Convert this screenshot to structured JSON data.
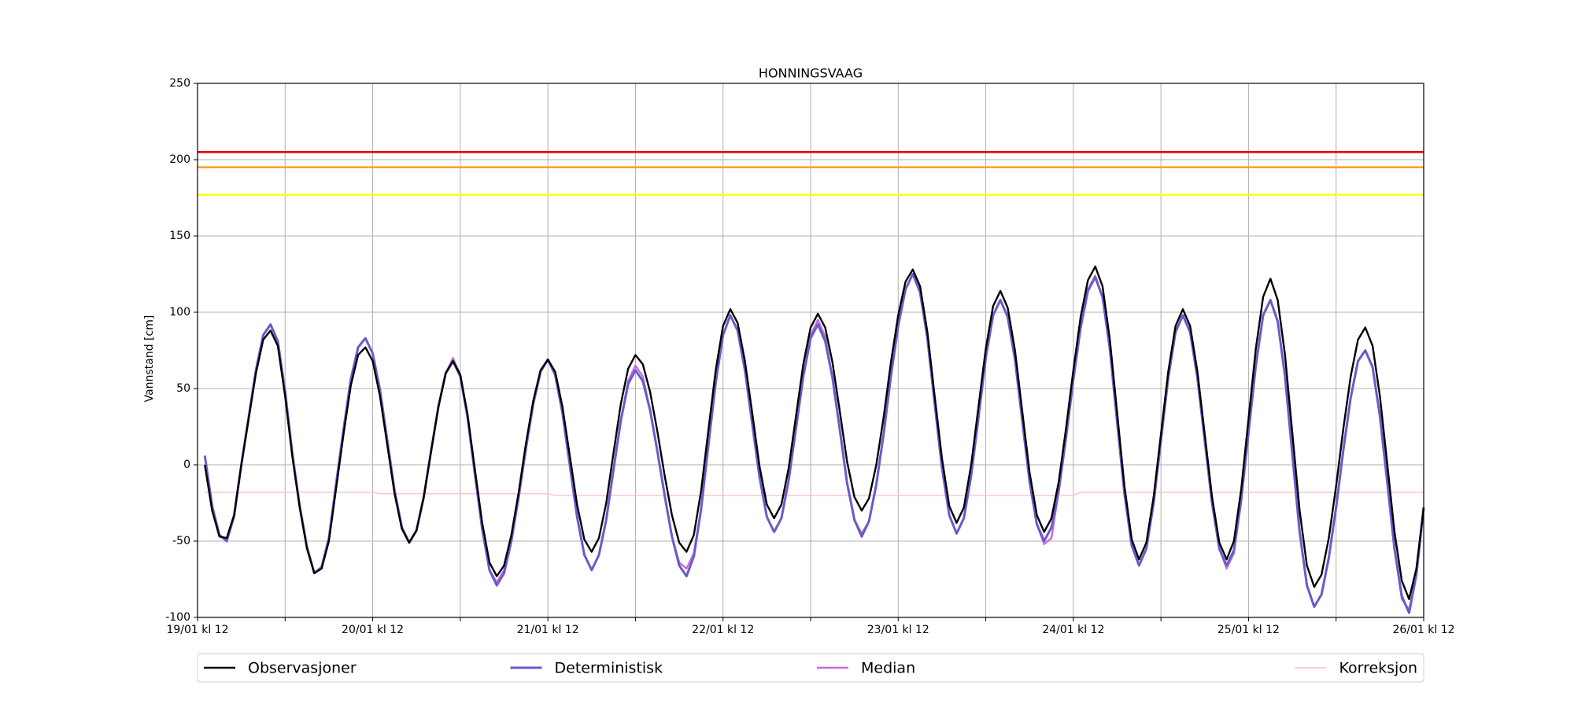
{
  "chart_data": {
    "type": "line",
    "title": "HONNINGSVAAG",
    "ylabel": "Vannstand [cm]",
    "xlim": [
      0,
      168
    ],
    "ylim": [
      -100,
      250
    ],
    "yticks": [
      -100,
      -50,
      0,
      50,
      100,
      150,
      200,
      250
    ],
    "xticks": [
      {
        "value": 0,
        "label": "19/01 kl 12"
      },
      {
        "value": 24,
        "label": "20/01 kl 12"
      },
      {
        "value": 48,
        "label": "21/01 kl 12"
      },
      {
        "value": 72,
        "label": "22/01 kl 12"
      },
      {
        "value": 96,
        "label": "23/01 kl 12"
      },
      {
        "value": 120,
        "label": "24/01 kl 12"
      },
      {
        "value": 144,
        "label": "25/01 kl 12"
      },
      {
        "value": 168,
        "label": "26/01 kl 12"
      }
    ],
    "xminor_ticks": [
      12,
      36,
      60,
      84,
      108,
      132,
      156
    ],
    "grid": true,
    "legend_position": "bottom",
    "hlines": [
      {
        "value": 205,
        "color": "#e8000b"
      },
      {
        "value": 195,
        "color": "#f5a524"
      },
      {
        "value": 177,
        "color": "#ffff1a"
      }
    ],
    "x": [
      1,
      2,
      3,
      4,
      5,
      6,
      7,
      8,
      9,
      10,
      11,
      12,
      13,
      14,
      15,
      16,
      17,
      18,
      19,
      20,
      21,
      22,
      23,
      24,
      25,
      26,
      27,
      28,
      29,
      30,
      31,
      32,
      33,
      34,
      35,
      36,
      37,
      38,
      39,
      40,
      41,
      42,
      43,
      44,
      45,
      46,
      47,
      48,
      49,
      50,
      51,
      52,
      53,
      54,
      55,
      56,
      57,
      58,
      59,
      60,
      61,
      62,
      63,
      64,
      65,
      66,
      67,
      68,
      69,
      70,
      71,
      72,
      73,
      74,
      75,
      76,
      77,
      78,
      79,
      80,
      81,
      82,
      83,
      84,
      85,
      86,
      87,
      88,
      89,
      90,
      91,
      92,
      93,
      94,
      95,
      96,
      97,
      98,
      99,
      100,
      101,
      102,
      103,
      104,
      105,
      106,
      107,
      108,
      109,
      110,
      111,
      112,
      113,
      114,
      115,
      116,
      117,
      118,
      119,
      120,
      121,
      122,
      123,
      124,
      125,
      126,
      127,
      128,
      129,
      130,
      131,
      132,
      133,
      134,
      135,
      136,
      137,
      138,
      139,
      140,
      141,
      142,
      143,
      144,
      145,
      146,
      147,
      148,
      149,
      150,
      151,
      152,
      153,
      154,
      155,
      156,
      157,
      158,
      159,
      160,
      161,
      162,
      163,
      164,
      165,
      166,
      167,
      168
    ],
    "series": [
      {
        "name": "Observasjoner",
        "color": "#000000",
        "width": 2.4,
        "values": [
          0,
          -30,
          -47,
          -48,
          -33,
          0,
          30,
          60,
          82,
          88,
          78,
          45,
          5,
          -28,
          -55,
          -71,
          -68,
          -50,
          -15,
          20,
          52,
          72,
          77,
          68,
          45,
          13,
          -19,
          -42,
          -51,
          -43,
          -21,
          9,
          38,
          60,
          68,
          59,
          33,
          -3,
          -38,
          -64,
          -73,
          -66,
          -46,
          -18,
          14,
          42,
          62,
          69,
          61,
          38,
          6,
          -26,
          -49,
          -57,
          -48,
          -25,
          8,
          40,
          63,
          72,
          66,
          48,
          22,
          -7,
          -33,
          -51,
          -57,
          -46,
          -17,
          23,
          62,
          91,
          102,
          93,
          68,
          34,
          -1,
          -26,
          -35,
          -26,
          -2,
          32,
          66,
          90,
          99,
          90,
          67,
          35,
          2,
          -21,
          -30,
          -22,
          0,
          31,
          67,
          98,
          120,
          128,
          117,
          87,
          45,
          4,
          -27,
          -38,
          -28,
          0,
          38,
          76,
          104,
          114,
          103,
          75,
          35,
          -5,
          -33,
          -44,
          -35,
          -11,
          24,
          62,
          97,
          121,
          130,
          117,
          82,
          34,
          -14,
          -49,
          -62,
          -51,
          -21,
          20,
          61,
          91,
          102,
          91,
          61,
          20,
          -21,
          -51,
          -62,
          -50,
          -16,
          30,
          76,
          110,
          122,
          108,
          72,
          21,
          -30,
          -66,
          -80,
          -72,
          -48,
          -14,
          24,
          58,
          82,
          90,
          78,
          45,
          1,
          -44,
          -76,
          -88,
          -68,
          -28
        ]
      },
      {
        "name": "Deterministisk",
        "color": "#6a5acd",
        "width": 3,
        "values": [
          6,
          -27,
          -46,
          -50,
          -34,
          0,
          31,
          62,
          85,
          92,
          81,
          48,
          7,
          -27,
          -54,
          -71,
          -67,
          -48,
          -12,
          23,
          56,
          77,
          83,
          73,
          49,
          16,
          -17,
          -41,
          -51,
          -43,
          -21,
          9,
          38,
          60,
          68,
          58,
          31,
          -6,
          -42,
          -69,
          -79,
          -71,
          -50,
          -21,
          11,
          40,
          61,
          69,
          59,
          34,
          0,
          -34,
          -59,
          -69,
          -59,
          -36,
          -3,
          29,
          53,
          62,
          55,
          36,
          9,
          -20,
          -47,
          -66,
          -73,
          -60,
          -29,
          13,
          54,
          85,
          98,
          88,
          62,
          27,
          -8,
          -34,
          -44,
          -35,
          -10,
          24,
          58,
          83,
          92,
          81,
          57,
          23,
          -12,
          -36,
          -47,
          -37,
          -13,
          20,
          58,
          91,
          115,
          125,
          113,
          83,
          40,
          -2,
          -33,
          -45,
          -35,
          -7,
          31,
          70,
          98,
          108,
          97,
          69,
          29,
          -11,
          -39,
          -50,
          -41,
          -17,
          18,
          56,
          90,
          114,
          123,
          110,
          76,
          28,
          -19,
          -53,
          -66,
          -55,
          -25,
          16,
          57,
          87,
          98,
          87,
          57,
          16,
          -25,
          -55,
          -66,
          -56,
          -23,
          21,
          65,
          98,
          108,
          94,
          58,
          7,
          -44,
          -79,
          -93,
          -85,
          -61,
          -28,
          10,
          44,
          68,
          75,
          64,
          32,
          -11,
          -55,
          -86,
          -97,
          -72,
          -28
        ]
      },
      {
        "name": "Median",
        "color": "#c46bd6",
        "width": 2.4,
        "values": [
          6,
          -27,
          -46,
          -50,
          -34,
          0,
          31,
          62,
          85,
          92,
          81,
          48,
          7,
          -27,
          -54,
          -71,
          -67,
          -48,
          -12,
          23,
          56,
          77,
          83,
          73,
          49,
          16,
          -17,
          -41,
          -51,
          -43,
          -21,
          9,
          38,
          60,
          70,
          59,
          31,
          -6,
          -42,
          -69,
          -77,
          -69,
          -50,
          -21,
          11,
          40,
          61,
          69,
          59,
          34,
          0,
          -34,
          -59,
          -69,
          -59,
          -36,
          -3,
          29,
          55,
          65,
          58,
          36,
          9,
          -20,
          -47,
          -64,
          -68,
          -58,
          -29,
          13,
          54,
          85,
          98,
          88,
          62,
          27,
          -8,
          -34,
          -44,
          -35,
          -10,
          24,
          58,
          85,
          95,
          84,
          57,
          23,
          -12,
          -36,
          -45,
          -37,
          -13,
          20,
          58,
          91,
          115,
          125,
          113,
          83,
          40,
          -2,
          -33,
          -45,
          -35,
          -7,
          31,
          70,
          98,
          108,
          97,
          69,
          29,
          -11,
          -39,
          -52,
          -48,
          -17,
          18,
          56,
          90,
          115,
          124,
          110,
          76,
          28,
          -19,
          -53,
          -66,
          -55,
          -25,
          16,
          57,
          87,
          98,
          87,
          57,
          16,
          -25,
          -55,
          -68,
          -58,
          -23,
          21,
          65,
          98,
          108,
          94,
          58,
          7,
          -44,
          -79,
          -93,
          -85,
          -61,
          -28,
          10,
          44,
          68,
          75,
          64,
          32,
          -11,
          -55,
          -88,
          -95,
          -72,
          -28
        ]
      },
      {
        "name": "Korreksjon",
        "color": "#f4c4cc",
        "width": 1.4,
        "values": [
          -18,
          -18,
          -18,
          -18,
          -18,
          -18,
          -18,
          -18,
          -18,
          -18,
          -18,
          -18,
          -18,
          -18,
          -18,
          -18,
          -18,
          -18,
          -18,
          -18,
          -18,
          -18,
          -18,
          -18,
          -19,
          -19,
          -19,
          -19,
          -19,
          -19,
          -19,
          -19,
          -19,
          -19,
          -19,
          -19,
          -19,
          -19,
          -19,
          -19,
          -19,
          -19,
          -19,
          -19,
          -19,
          -19,
          -19,
          -19,
          -20,
          -20,
          -20,
          -20,
          -20,
          -20,
          -20,
          -20,
          -20,
          -20,
          -20,
          -20,
          -20,
          -20,
          -20,
          -20,
          -20,
          -20,
          -20,
          -20,
          -20,
          -20,
          -20,
          -20,
          -20,
          -20,
          -20,
          -20,
          -20,
          -20,
          -20,
          -20,
          -20,
          -20,
          -20,
          -20,
          -20,
          -20,
          -20,
          -20,
          -20,
          -20,
          -20,
          -20,
          -20,
          -20,
          -20,
          -20,
          -20,
          -20,
          -20,
          -20,
          -20,
          -20,
          -20,
          -20,
          -20,
          -20,
          -20,
          -20,
          -20,
          -20,
          -20,
          -20,
          -20,
          -20,
          -20,
          -20,
          -20,
          -20,
          -20,
          -20,
          -18,
          -18,
          -18,
          -18,
          -18,
          -18,
          -18,
          -18,
          -18,
          -18,
          -18,
          -18,
          -18,
          -18,
          -18,
          -18,
          -18,
          -18,
          -18,
          -18,
          -18,
          -18,
          -18,
          -18,
          -18,
          -18,
          -18,
          -18,
          -18,
          -18,
          -18,
          -18,
          -18,
          -18,
          -18,
          -18,
          -18,
          -18,
          -18,
          -18,
          -18,
          -18,
          -18,
          -18,
          -18,
          -18,
          -18,
          -18
        ]
      }
    ]
  }
}
